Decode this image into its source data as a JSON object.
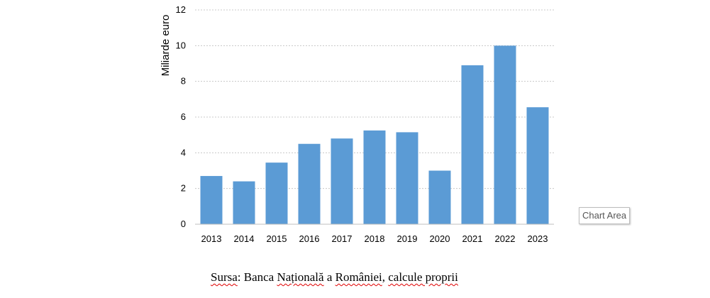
{
  "chart_data": {
    "type": "bar",
    "categories": [
      "2013",
      "2014",
      "2015",
      "2016",
      "2017",
      "2018",
      "2019",
      "2020",
      "2021",
      "2022",
      "2023"
    ],
    "values": [
      2.7,
      2.4,
      3.45,
      4.5,
      4.8,
      5.25,
      5.15,
      3.0,
      8.9,
      10.0,
      6.55
    ],
    "title": "",
    "xlabel": "",
    "ylabel": "Miliarde euro",
    "ylim": [
      0,
      12
    ],
    "yticks": [
      0,
      2,
      4,
      6,
      8,
      10,
      12
    ],
    "grid": true,
    "bar_color": "#5b9bd5"
  },
  "tooltip": {
    "label": "Chart Area"
  },
  "source": {
    "prefix": "Sursa",
    "sep1": ": Banca ",
    "word2": "Națională",
    "sep2": " a ",
    "word3": "României",
    "sep3": ", ",
    "word4": "calcule proprii"
  }
}
